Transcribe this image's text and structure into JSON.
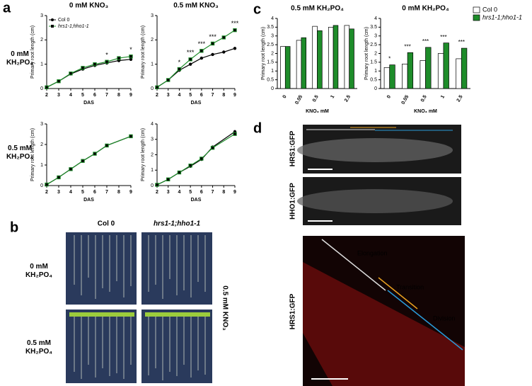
{
  "figure": {
    "panels": [
      "a",
      "b",
      "c",
      "d"
    ],
    "a_rows": [
      "0 mM\nKH₂PO₄",
      "0.5 mM\nKH₂PO₄"
    ],
    "b_columns": [
      "Col 0",
      "hrs1-1;hho1-1"
    ],
    "b_rows": [
      "0 mM\nKH₂PO₄",
      "0.5 mM\nKH₂PO₄"
    ],
    "b_side": "0.5 mM KNO₃",
    "d_rows": [
      "HRS1:GFP",
      "HHO1:GFP",
      "HRS1:GFP"
    ],
    "d_zones": [
      "Elongation",
      "Transition",
      "Division"
    ]
  },
  "chart_data": [
    {
      "type": "line",
      "title": "0 mM KNO₃",
      "xlabel": "DAS",
      "ylabel": "Primary root length (cm)",
      "x": [
        2,
        3,
        4,
        5,
        6,
        7,
        8,
        9
      ],
      "xlim": [
        2,
        9
      ],
      "xticks": [
        2,
        3,
        4,
        5,
        6,
        7,
        8,
        9
      ],
      "ylim": [
        0,
        3
      ],
      "yticks": [
        0,
        1,
        2,
        3
      ],
      "legend": "upper left",
      "series": [
        {
          "name": "Col 0",
          "color": "#000000",
          "values": [
            0.05,
            0.3,
            0.6,
            0.8,
            0.95,
            1.05,
            1.15,
            1.2
          ]
        },
        {
          "name": "hrs1-1;hho1-1",
          "color": "#1e8c2a",
          "values": [
            0.05,
            0.3,
            0.62,
            0.85,
            1.0,
            1.1,
            1.25,
            1.32
          ]
        }
      ],
      "annotations": [
        null,
        null,
        null,
        null,
        null,
        "*",
        null,
        "*"
      ]
    },
    {
      "type": "line",
      "title": "0.5 mM KNO₃",
      "xlabel": "DAS",
      "ylabel": "Primary root length (cm)",
      "x": [
        2,
        3,
        4,
        5,
        6,
        7,
        8,
        9
      ],
      "xlim": [
        2,
        9
      ],
      "xticks": [
        2,
        3,
        4,
        5,
        6,
        7,
        8,
        9
      ],
      "ylim": [
        0,
        3
      ],
      "yticks": [
        0,
        1,
        2,
        3
      ],
      "series": [
        {
          "color": "#000000",
          "values": [
            0.05,
            0.35,
            0.75,
            1.0,
            1.25,
            1.4,
            1.5,
            1.65
          ]
        },
        {
          "color": "#1e8c2a",
          "values": [
            0.05,
            0.35,
            0.8,
            1.2,
            1.55,
            1.85,
            2.1,
            2.4
          ]
        }
      ],
      "annotations": [
        null,
        null,
        "*",
        "***",
        "***",
        "***",
        null,
        "***"
      ]
    },
    {
      "type": "line",
      "xlabel": "DAS",
      "ylabel": "Primary root length (cm)",
      "x": [
        2,
        3,
        4,
        5,
        6,
        7,
        9
      ],
      "xlim": [
        2,
        9
      ],
      "xticks": [
        2,
        3,
        4,
        5,
        6,
        7,
        8,
        9
      ],
      "ylim": [
        0,
        3
      ],
      "yticks": [
        0,
        1,
        2,
        3
      ],
      "series": [
        {
          "color": "#000000",
          "values": [
            0.05,
            0.4,
            0.8,
            1.2,
            1.55,
            1.95,
            2.4
          ]
        },
        {
          "color": "#1e8c2a",
          "values": [
            0.05,
            0.4,
            0.8,
            1.2,
            1.55,
            1.95,
            2.4
          ]
        }
      ]
    },
    {
      "type": "line",
      "xlabel": "DAS",
      "ylabel": "Primary root length (cm)",
      "x": [
        2,
        3,
        4,
        5,
        6,
        7,
        9
      ],
      "xlim": [
        2,
        9
      ],
      "xticks": [
        2,
        3,
        4,
        5,
        6,
        7,
        8,
        9
      ],
      "ylim": [
        0,
        4
      ],
      "yticks": [
        0,
        1,
        2,
        3,
        4
      ],
      "series": [
        {
          "color": "#000000",
          "values": [
            0.05,
            0.4,
            0.85,
            1.25,
            1.7,
            2.5,
            3.5
          ]
        },
        {
          "color": "#1e8c2a",
          "values": [
            0.05,
            0.4,
            0.85,
            1.3,
            1.75,
            2.45,
            3.35
          ]
        }
      ]
    },
    {
      "type": "bar",
      "title": "0.5 mM KH₂PO₄",
      "xlabel": "KNO₃ mM",
      "ylabel": "Primary root length (cm)",
      "categories": [
        "0",
        "0.05",
        "0.5",
        "1",
        "2.5"
      ],
      "ylim": [
        0,
        4
      ],
      "yticks": [
        0,
        0.5,
        1,
        1.5,
        2,
        2.5,
        3,
        3.5,
        4
      ],
      "series": [
        {
          "color": "#ffffff",
          "values": [
            2.4,
            2.75,
            3.55,
            3.5,
            3.6
          ]
        },
        {
          "color": "#1e8c2a",
          "values": [
            2.4,
            2.9,
            3.3,
            3.6,
            3.4
          ]
        }
      ]
    },
    {
      "type": "bar",
      "title": "0 mM KH₂PO₄",
      "xlabel": "KNO₃ mM",
      "ylabel": "Primary root length (cm)",
      "categories": [
        "0",
        "0.05",
        "0.5",
        "1",
        "2.5"
      ],
      "ylim": [
        0,
        4
      ],
      "yticks": [
        0,
        0.5,
        1,
        1.5,
        2,
        2.5,
        3,
        3.5,
        4
      ],
      "legend": "outside right",
      "series": [
        {
          "name": "Col 0",
          "color": "#ffffff",
          "values": [
            1.2,
            1.4,
            1.6,
            2.0,
            1.7
          ]
        },
        {
          "name": "hrs1-1;hho1-1",
          "color": "#1e8c2a",
          "values": [
            1.35,
            2.05,
            2.35,
            2.6,
            2.3
          ]
        }
      ],
      "annotations": [
        "*",
        "***",
        "***",
        "***",
        "***"
      ]
    }
  ]
}
